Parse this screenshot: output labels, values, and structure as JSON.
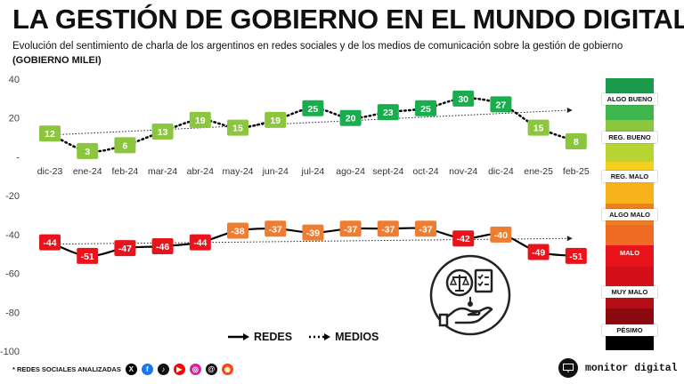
{
  "title": "LA GESTIÓN DE GOBIERNO EN EL MUNDO DIGITAL",
  "subtitle": "Evolución del sentimiento de charla de los argentinos en redes sociales y de los medios de comunicación sobre la gestión de gobierno",
  "subtitle2": "(GOBIERNO MILEI)",
  "chart_data": {
    "type": "line",
    "categories": [
      "dic-23",
      "ene-24",
      "feb-24",
      "mar-24",
      "abr-24",
      "may-24",
      "jun-24",
      "jul-24",
      "ago-24",
      "sept-24",
      "oct-24",
      "nov-24",
      "dic-24",
      "ene-25",
      "feb-25"
    ],
    "series": [
      {
        "name": "REDES",
        "style": "solid-arrow",
        "values": [
          -44,
          -51,
          -47,
          -46,
          -44,
          -38,
          -37,
          -39,
          -37,
          -37,
          -37,
          -42,
          -40,
          -49,
          -51
        ]
      },
      {
        "name": "MEDIOS",
        "style": "dotted-arrow",
        "values": [
          12,
          3,
          6,
          13,
          19,
          15,
          19,
          25,
          20,
          23,
          25,
          30,
          27,
          15,
          8
        ]
      }
    ],
    "trendlines": [
      {
        "series": "MEDIOS",
        "from": 11,
        "to": 24
      },
      {
        "series": "REDES",
        "from": -45,
        "to": -42
      }
    ],
    "yticks": [
      40,
      20,
      "-",
      -20,
      -40,
      -60,
      -80,
      -100
    ],
    "ylim": [
      -100,
      40
    ],
    "xlabel": "",
    "ylabel": "",
    "point_colors": {
      "ALGO BUENO": "#1aad4e",
      "REG. BUENO": "#8cc63f",
      "MALO": "#e8131b",
      "ALGO MALO": "#ef7d31"
    }
  },
  "scale": {
    "bands": [
      {
        "color": "#1a9a4a"
      },
      {
        "color": "#3fb54d"
      },
      {
        "color": "#8dc63f"
      },
      {
        "color": "#b7d434"
      },
      {
        "color": "#f4cf1f"
      },
      {
        "color": "#f7b21c"
      },
      {
        "color": "#ef7d22"
      },
      {
        "color": "#ef6a22"
      },
      {
        "color": "#e8131b"
      },
      {
        "color": "#d3101a"
      },
      {
        "color": "#b30d15"
      },
      {
        "color": "#8a0a10"
      },
      {
        "color": "#000000"
      }
    ],
    "labels": [
      "ALGO BUENO",
      "REG. BUENO",
      "REG. MALO",
      "ALGO MALO",
      "MALO",
      "MUY MALO",
      "PÉSIMO"
    ]
  },
  "legend": {
    "redes": "REDES",
    "medios": "MEDIOS"
  },
  "footer": {
    "note": "* REDES SOCIALES ANALIZADAS",
    "socials": [
      "X",
      "f",
      "♪",
      "▶",
      "◎",
      "@",
      "◉"
    ]
  },
  "brand": {
    "name": "monitor digital"
  }
}
